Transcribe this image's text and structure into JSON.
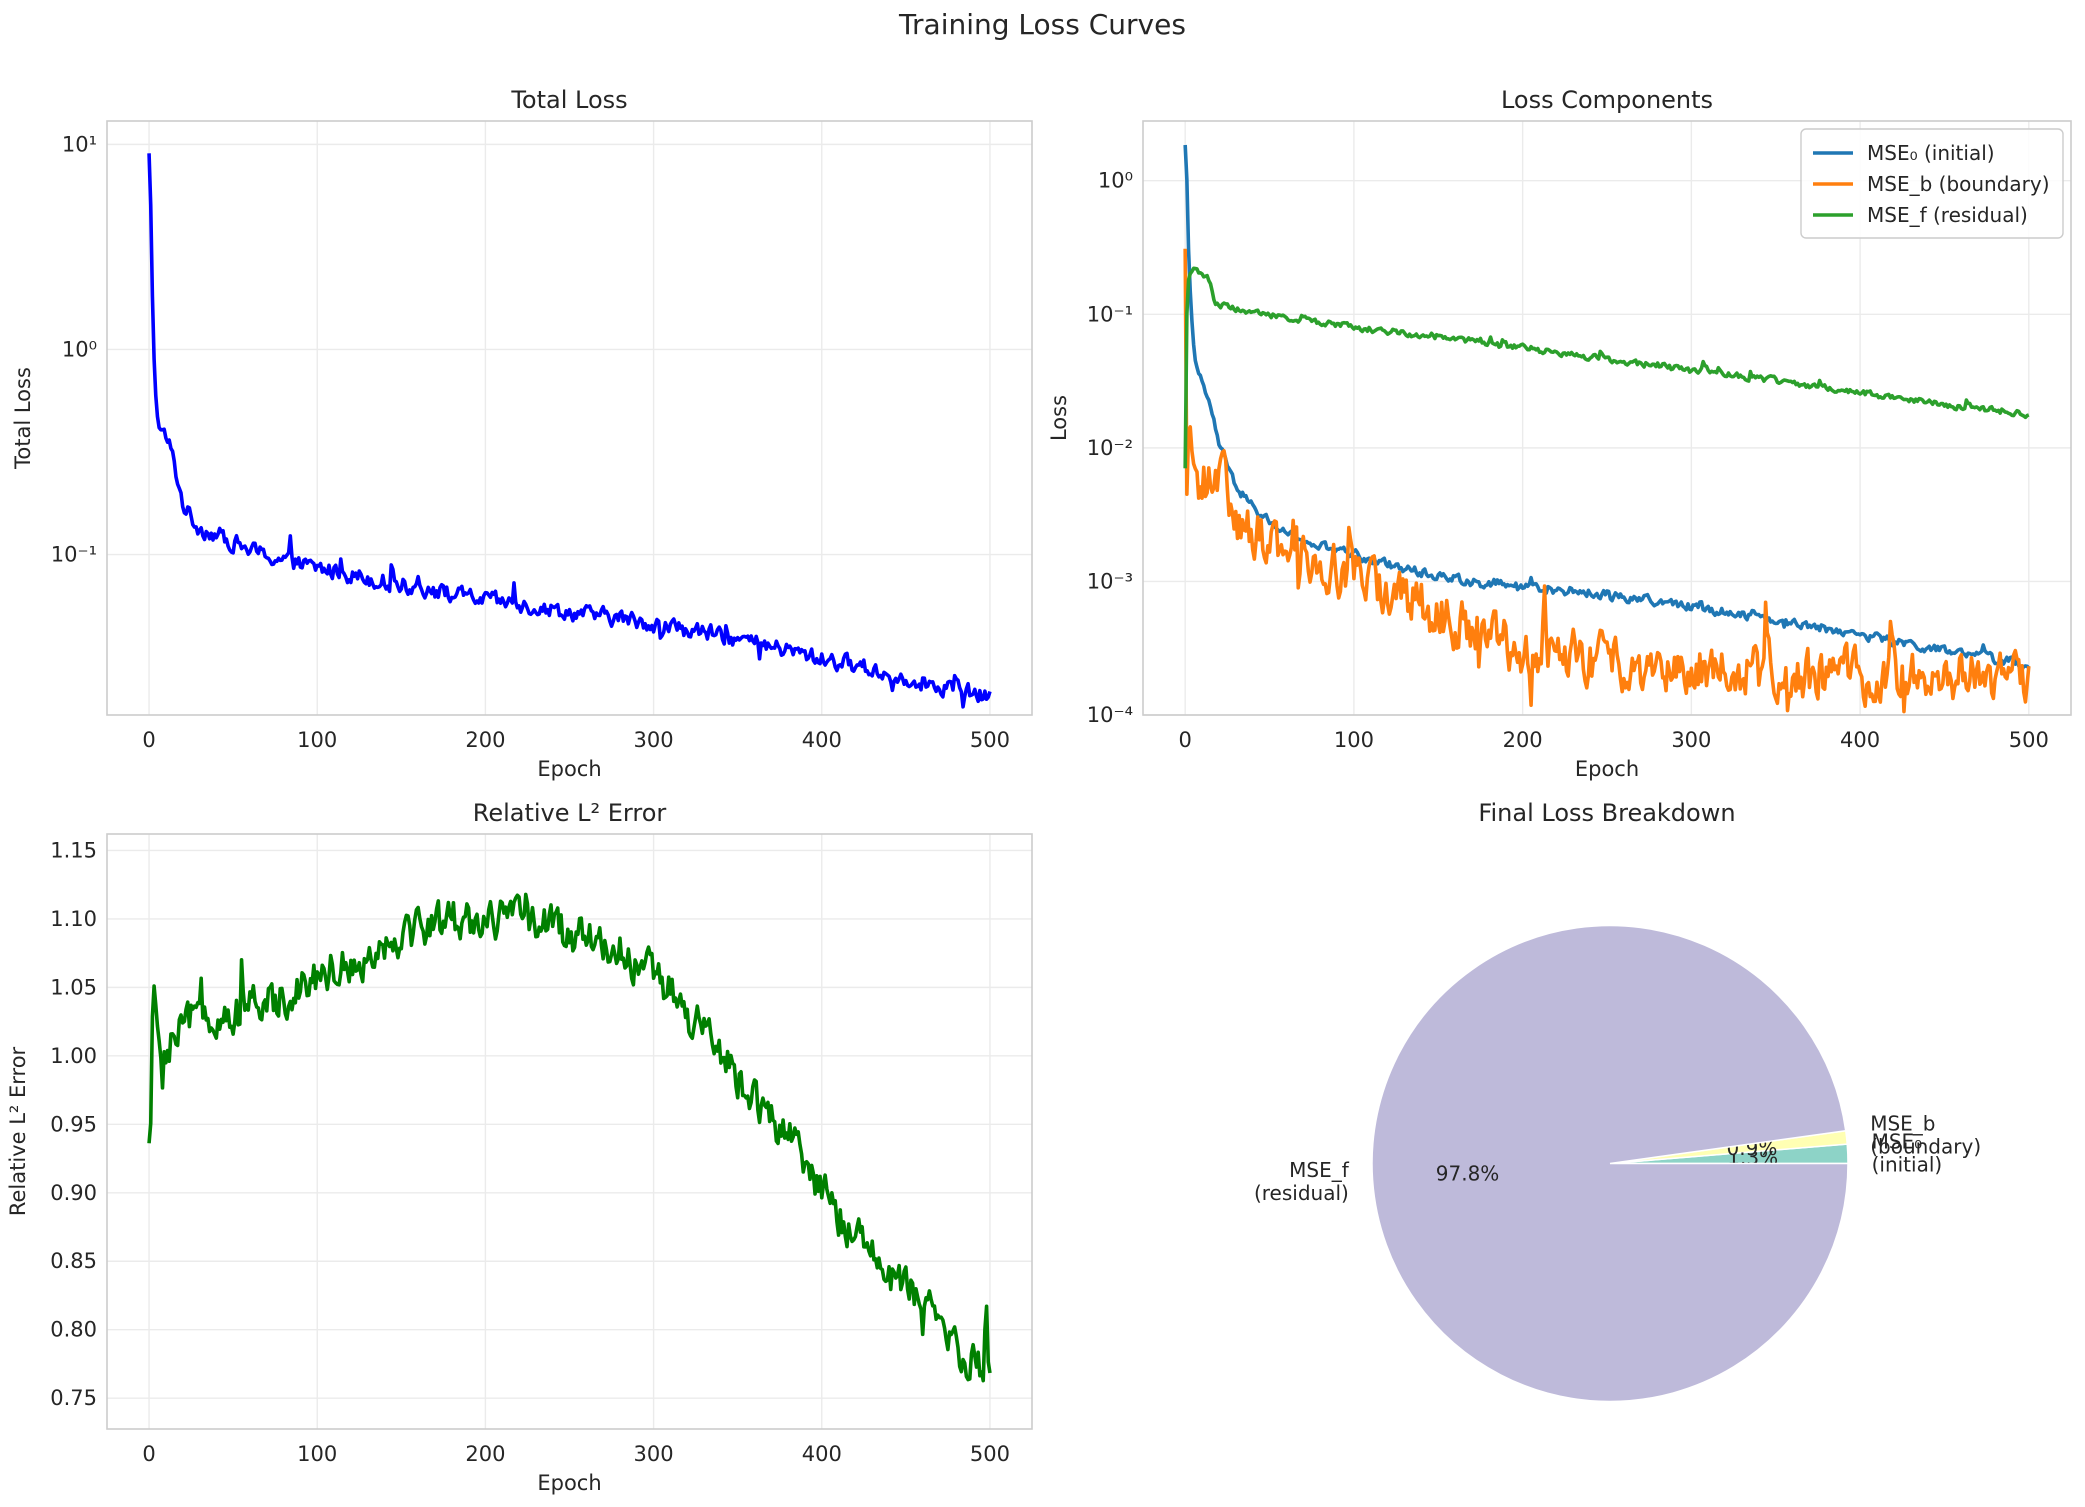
{
  "figure": {
    "title": "Training Loss Curves",
    "text_color": "#262626",
    "grid_color": "#ebebeb",
    "spine_color": "#cccccc"
  },
  "chart_data": [
    {
      "type": "line",
      "title": "Total Loss",
      "xlabel": "Epoch",
      "ylabel": "Total Loss",
      "yscale": "log",
      "xlim": [
        -25,
        525
      ],
      "ylim": [
        0.0165,
        13.0
      ],
      "xticks": [
        0,
        100,
        200,
        300,
        400,
        500
      ],
      "yticks": [
        0.1,
        1,
        10
      ],
      "ytick_labels": [
        "10⁻¹",
        "10⁰",
        "10¹"
      ],
      "grid": true,
      "legend": "none",
      "series": [
        {
          "color": "#0000ff",
          "x": [
            0,
            1,
            2,
            3,
            4,
            5,
            6,
            8,
            10,
            12,
            15,
            18,
            20,
            25,
            30,
            40,
            50,
            60,
            75,
            90,
            100,
            120,
            140,
            160,
            180,
            200,
            220,
            240,
            260,
            280,
            300,
            320,
            340,
            360,
            380,
            400,
            420,
            440,
            460,
            480,
            500
          ],
          "y": [
            9.0,
            5.0,
            1.8,
            0.9,
            0.6,
            0.47,
            0.42,
            0.39,
            0.37,
            0.34,
            0.28,
            0.21,
            0.18,
            0.15,
            0.135,
            0.125,
            0.115,
            0.105,
            0.096,
            0.089,
            0.086,
            0.08,
            0.074,
            0.069,
            0.064,
            0.06,
            0.057,
            0.054,
            0.051,
            0.049,
            0.046,
            0.043,
            0.04,
            0.037,
            0.034,
            0.031,
            0.029,
            0.026,
            0.024,
            0.022,
            0.02
          ],
          "noise": 0.06
        }
      ]
    },
    {
      "type": "line",
      "title": "Loss Components",
      "xlabel": "Epoch",
      "ylabel": "Loss",
      "yscale": "log",
      "xlim": [
        -25,
        525
      ],
      "ylim": [
        0.0001,
        2.8
      ],
      "xticks": [
        0,
        100,
        200,
        300,
        400,
        500
      ],
      "yticks": [
        0.0001,
        0.001,
        0.01,
        0.1,
        1
      ],
      "ytick_labels": [
        "10⁻⁴",
        "10⁻³",
        "10⁻²",
        "10⁻¹",
        "10⁰"
      ],
      "grid": true,
      "legend": "top-right",
      "series": [
        {
          "name": "MSE₀ (initial)",
          "color": "#1f77b4",
          "x": [
            0,
            1,
            2,
            3,
            4,
            5,
            6,
            8,
            10,
            12,
            15,
            18,
            20,
            25,
            30,
            40,
            50,
            60,
            75,
            90,
            100,
            125,
            150,
            175,
            200,
            250,
            300,
            350,
            400,
            450,
            500
          ],
          "y": [
            1.8,
            1.0,
            0.3,
            0.15,
            0.09,
            0.06,
            0.045,
            0.035,
            0.03,
            0.026,
            0.02,
            0.014,
            0.011,
            0.007,
            0.0052,
            0.0036,
            0.0028,
            0.0023,
            0.0019,
            0.0017,
            0.0016,
            0.0013,
            0.0011,
            0.001,
            0.00092,
            0.0008,
            0.00065,
            0.00052,
            0.0004,
            0.0003,
            0.00024
          ],
          "noise": 0.05
        },
        {
          "name": "MSE_b (boundary)",
          "color": "#ff7f0e",
          "x": [
            0,
            1,
            2,
            3,
            4,
            5,
            7,
            10,
            15,
            20,
            25,
            30,
            35,
            50,
            75,
            100,
            125,
            150,
            175,
            200,
            250,
            300,
            350,
            400,
            450,
            500
          ],
          "y": [
            0.3,
            0.0045,
            0.012,
            0.014,
            0.009,
            0.0075,
            0.0068,
            0.0062,
            0.0055,
            0.0063,
            0.005,
            0.003,
            0.0025,
            0.0021,
            0.0016,
            0.0011,
            0.0008,
            0.00055,
            0.0004,
            0.0003,
            0.00025,
            0.00023,
            0.00021,
            0.0002,
            0.0002,
            0.00019
          ],
          "noise": 0.28
        },
        {
          "name": "MSE_f (residual)",
          "color": "#2ca02c",
          "x": [
            0,
            1,
            2,
            3,
            4,
            5,
            7,
            10,
            13,
            16,
            18,
            20,
            25,
            30,
            50,
            100,
            150,
            200,
            250,
            300,
            350,
            400,
            450,
            500
          ],
          "y": [
            0.007,
            0.1,
            0.18,
            0.2,
            0.21,
            0.22,
            0.22,
            0.21,
            0.19,
            0.15,
            0.125,
            0.118,
            0.113,
            0.11,
            0.1,
            0.08,
            0.068,
            0.056,
            0.046,
            0.039,
            0.032,
            0.026,
            0.021,
            0.018
          ],
          "noise": 0.035
        }
      ]
    },
    {
      "type": "line",
      "title": "Relative L² Error",
      "xlabel": "Epoch",
      "ylabel": "Relative L² Error",
      "yscale": "linear",
      "xlim": [
        -25,
        525
      ],
      "ylim": [
        0.7275,
        1.162
      ],
      "xticks": [
        0,
        100,
        200,
        300,
        400,
        500
      ],
      "yticks": [
        0.75,
        0.8,
        0.85,
        0.9,
        0.95,
        1.0,
        1.05,
        1.1,
        1.15
      ],
      "ytick_labels": [
        "0.75",
        "0.80",
        "0.85",
        "0.90",
        "0.95",
        "1.00",
        "1.05",
        "1.10",
        "1.15"
      ],
      "grid": true,
      "legend": "none",
      "series": [
        {
          "color": "#008000",
          "x": [
            0,
            1,
            2,
            3,
            5,
            7,
            10,
            20,
            30,
            50,
            75,
            100,
            125,
            150,
            175,
            200,
            225,
            250,
            275,
            300,
            320,
            340,
            360,
            380,
            400,
            420,
            440,
            460,
            480,
            500
          ],
          "y": [
            0.935,
            0.95,
            1.03,
            1.05,
            1.02,
            1.0,
            1.0,
            1.02,
            1.03,
            1.03,
            1.04,
            1.06,
            1.07,
            1.09,
            1.1,
            1.1,
            1.1,
            1.09,
            1.08,
            1.06,
            1.03,
            1.0,
            0.97,
            0.94,
            0.9,
            0.87,
            0.84,
            0.82,
            0.79,
            0.76
          ],
          "noise": 0.022
        }
      ]
    },
    {
      "type": "pie",
      "title": "Final Loss Breakdown",
      "slices": [
        {
          "label": "MSE₀\n(initial)",
          "value": 1.3,
          "pct": "1.3%",
          "color": "#8dd3c7"
        },
        {
          "label": "MSE_b\n(boundary)",
          "value": 0.9,
          "pct": "0.9%",
          "color": "#ffffb3"
        },
        {
          "label": "MSE_f\n(residual)",
          "value": 97.8,
          "pct": "97.8%",
          "color": "#bebada"
        }
      ],
      "startangle": 0
    }
  ]
}
